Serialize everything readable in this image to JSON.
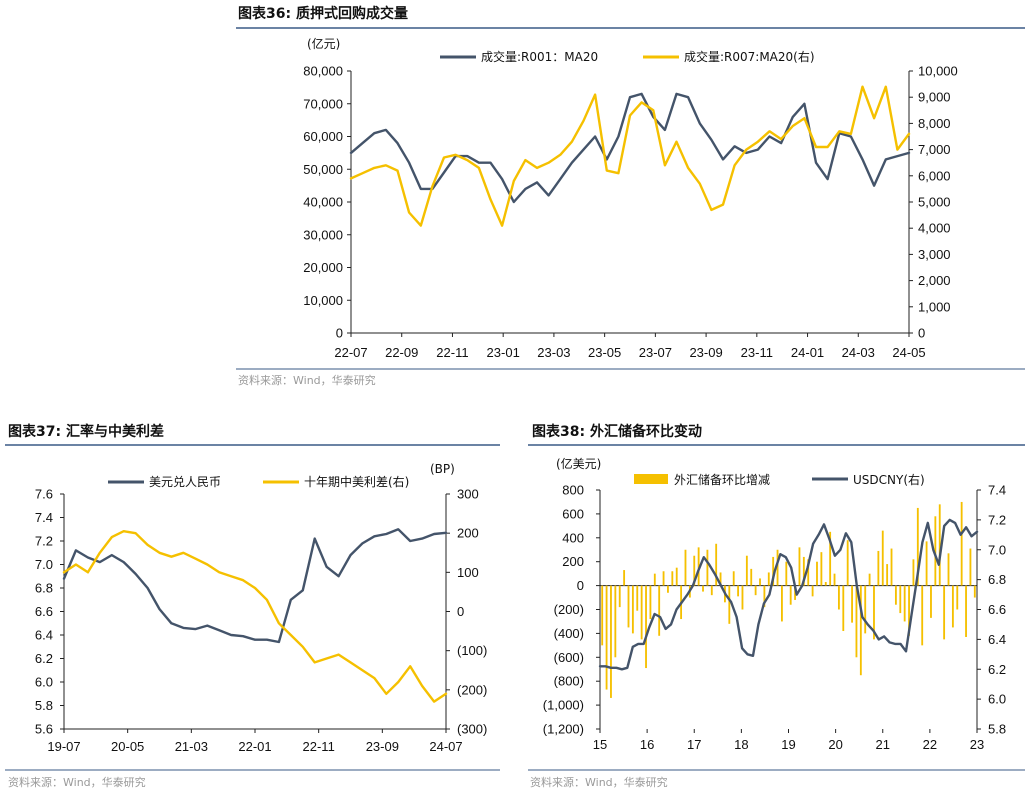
{
  "colors": {
    "navy": "#44546a",
    "gold": "#f5c000",
    "axis": "#222222",
    "rule": "#3a5a86",
    "source": "#9a9a9a"
  },
  "chart_data": [
    {
      "id": "fig36",
      "type": "line",
      "title": "图表36:  质押式回购成交量",
      "left_unit": "(亿元)",
      "source": "资料来源：Wind，华泰研究",
      "x_ticks": [
        "22-07",
        "22-09",
        "22-11",
        "23-01",
        "23-03",
        "23-05",
        "23-07",
        "23-09",
        "23-11",
        "24-01",
        "24-03",
        "24-05"
      ],
      "y_left": {
        "min": 0,
        "max": 80000,
        "ticks": [
          "0",
          "10,000",
          "20,000",
          "30,000",
          "40,000",
          "50,000",
          "60,000",
          "70,000",
          "80,000"
        ]
      },
      "y_right": {
        "min": 0,
        "max": 10000,
        "ticks": [
          "0",
          "1,000",
          "2,000",
          "3,000",
          "4,000",
          "5,000",
          "6,000",
          "7,000",
          "8,000",
          "9,000",
          "10,000"
        ]
      },
      "series": [
        {
          "name": "成交量:R001：MA20",
          "axis": "left",
          "color": "#44546a",
          "values": [
            55000,
            58000,
            61000,
            62000,
            58000,
            52000,
            44000,
            44000,
            49000,
            54000,
            54000,
            52000,
            52000,
            47000,
            40000,
            44000,
            46000,
            42000,
            47000,
            52000,
            56000,
            60000,
            53000,
            60000,
            72000,
            73000,
            66000,
            62000,
            73000,
            72000,
            64000,
            59000,
            53000,
            57000,
            55000,
            56000,
            60000,
            58000,
            66000,
            70000,
            52000,
            47000,
            61000,
            60000,
            53000,
            45000,
            53000,
            54000,
            55000
          ]
        },
        {
          "name": "成交量:R007:MA20(右)",
          "axis": "right",
          "color": "#f5c000",
          "values": [
            5900,
            6100,
            6300,
            6400,
            6200,
            4600,
            4100,
            5600,
            6700,
            6800,
            6600,
            6300,
            5100,
            4100,
            5800,
            6600,
            6300,
            6500,
            6800,
            7300,
            8100,
            9100,
            6200,
            6100,
            8300,
            8800,
            8500,
            6400,
            7300,
            6300,
            5700,
            4700,
            4900,
            6400,
            7000,
            7300,
            7700,
            7400,
            7900,
            8200,
            7100,
            7100,
            7700,
            7600,
            9400,
            8200,
            9400,
            7000,
            7600
          ]
        }
      ]
    },
    {
      "id": "fig37",
      "type": "line",
      "title": "图表37:  汇率与中美利差",
      "right_unit": "(BP)",
      "source": "资料来源：Wind，华泰研究",
      "x_ticks": [
        "19-07",
        "20-05",
        "21-03",
        "22-01",
        "22-11",
        "23-09",
        "24-07"
      ],
      "y_left": {
        "min": 5.6,
        "max": 7.6,
        "ticks": [
          "5.6",
          "5.8",
          "6.0",
          "6.2",
          "6.4",
          "6.6",
          "6.8",
          "7.0",
          "7.2",
          "7.4",
          "7.6"
        ]
      },
      "y_right": {
        "min": -300,
        "max": 300,
        "ticks": [
          "(300)",
          "(200)",
          "(100)",
          "0",
          "100",
          "200",
          "300"
        ]
      },
      "series": [
        {
          "name": "美元兑人民币",
          "axis": "left",
          "color": "#44546a",
          "values": [
            6.88,
            7.12,
            7.06,
            7.02,
            7.08,
            7.02,
            6.92,
            6.8,
            6.62,
            6.5,
            6.46,
            6.45,
            6.48,
            6.44,
            6.4,
            6.39,
            6.36,
            6.36,
            6.34,
            6.7,
            6.78,
            7.22,
            6.98,
            6.9,
            7.08,
            7.18,
            7.24,
            7.26,
            7.3,
            7.2,
            7.22,
            7.26,
            7.27
          ]
        },
        {
          "name": "十年期中美利差(右)",
          "axis": "right",
          "color": "#f5c000",
          "values": [
            100,
            120,
            100,
            150,
            190,
            205,
            200,
            170,
            150,
            140,
            150,
            135,
            120,
            100,
            90,
            80,
            60,
            30,
            -30,
            -60,
            -90,
            -130,
            -120,
            -110,
            -130,
            -150,
            -170,
            -210,
            -180,
            -140,
            -190,
            -230,
            -210
          ]
        }
      ]
    },
    {
      "id": "fig38",
      "type": "bar+line",
      "title": "图表38:  外汇储备环比变动",
      "left_unit": "(亿美元)",
      "source": "资料来源：Wind，华泰研究",
      "x_ticks": [
        "15",
        "16",
        "17",
        "18",
        "19",
        "20",
        "21",
        "22",
        "23"
      ],
      "y_left": {
        "min": -1200,
        "max": 800,
        "ticks": [
          "(1,200)",
          "(1,000)",
          "(800)",
          "(600)",
          "(400)",
          "(200)",
          "0",
          "200",
          "400",
          "600",
          "800"
        ]
      },
      "y_right": {
        "min": 5.8,
        "max": 7.4,
        "ticks": [
          "5.8",
          "6.0",
          "6.2",
          "6.4",
          "6.6",
          "6.8",
          "7.0",
          "7.2",
          "7.4"
        ]
      },
      "series": [
        {
          "name": "外汇储备环比增减",
          "axis": "left",
          "type": "bar",
          "color": "#f5c000",
          "values": [
            -500,
            -870,
            -940,
            -600,
            -180,
            130,
            -350,
            -400,
            -210,
            -450,
            -690,
            -280,
            100,
            -420,
            120,
            -60,
            120,
            150,
            -280,
            300,
            -100,
            250,
            320,
            -50,
            300,
            -80,
            350,
            110,
            -140,
            -320,
            120,
            -90,
            -200,
            250,
            140,
            -80,
            60,
            -180,
            110,
            240,
            300,
            -300,
            200,
            -160,
            -120,
            320,
            240,
            220,
            -90,
            200,
            280,
            30,
            450,
            100,
            -200,
            -380,
            380,
            -310,
            -600,
            -750,
            -400,
            100,
            -450,
            290,
            460,
            180,
            310,
            -160,
            -230,
            -300,
            -420,
            220,
            650,
            -500,
            370,
            -270,
            580,
            680,
            -450,
            270,
            -350,
            -200,
            700,
            -430,
            310,
            -100
          ]
        },
        {
          "name": "USDCNY(右)",
          "axis": "right",
          "type": "line",
          "color": "#44546a",
          "values": [
            6.22,
            6.22,
            6.21,
            6.21,
            6.2,
            6.21,
            6.35,
            6.37,
            6.37,
            6.48,
            6.57,
            6.55,
            6.47,
            6.5,
            6.6,
            6.65,
            6.7,
            6.76,
            6.86,
            6.95,
            6.9,
            6.84,
            6.77,
            6.7,
            6.65,
            6.55,
            6.34,
            6.3,
            6.29,
            6.5,
            6.64,
            6.7,
            6.86,
            6.97,
            6.95,
            6.88,
            6.7,
            6.76,
            6.88,
            7.04,
            7.1,
            7.17,
            7.07,
            6.96,
            7.0,
            7.11,
            7.05,
            6.76,
            6.55,
            6.5,
            6.46,
            6.4,
            6.42,
            6.38,
            6.37,
            6.37,
            6.32,
            6.56,
            6.8,
            7.05,
            7.18,
            7.0,
            6.9,
            7.16,
            7.2,
            7.18,
            7.1,
            7.15,
            7.09,
            7.12
          ]
        }
      ]
    }
  ]
}
